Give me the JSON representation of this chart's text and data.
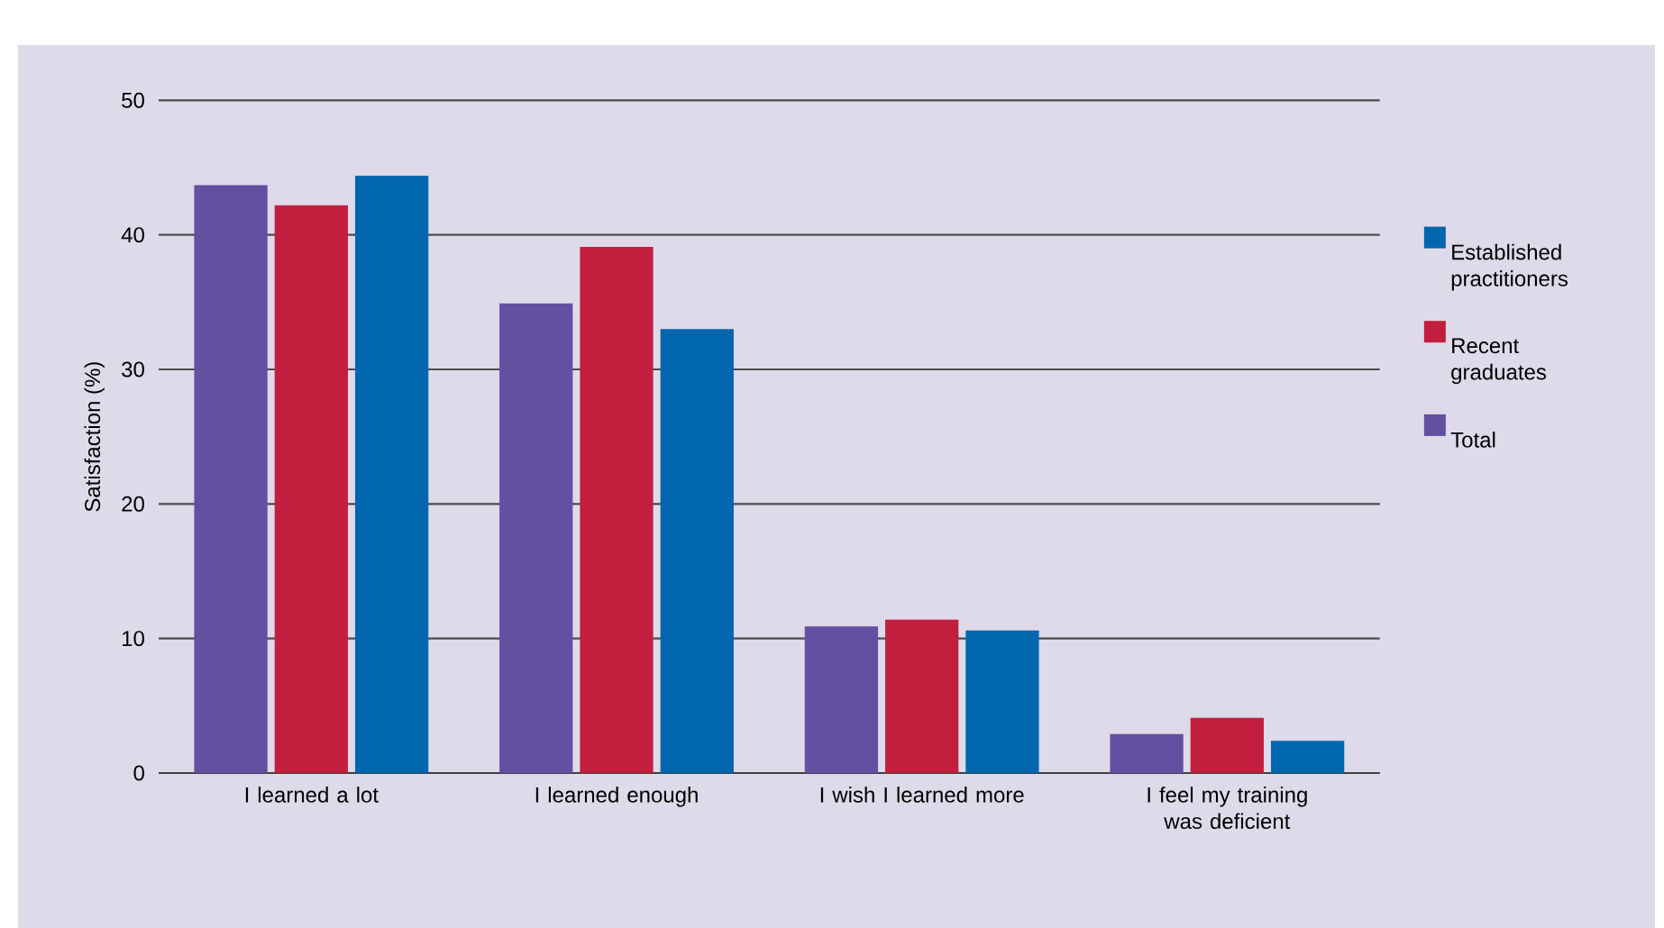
{
  "chart_data": {
    "type": "bar",
    "ylabel": "Satisfaction (%)",
    "categories": [
      "I learned a lot",
      "I learned enough",
      "I wish I learned more",
      "I feel my training was deficient"
    ],
    "series": [
      {
        "name": "Total",
        "color": "#6250a0",
        "values": [
          43.7,
          34.9,
          10.9,
          2.9
        ]
      },
      {
        "name": "Recent graduates",
        "color": "#c21f3e",
        "values": [
          42.2,
          39.1,
          11.4,
          4.1
        ]
      },
      {
        "name": "Established practitioners",
        "color": "#0066ae",
        "values": [
          44.4,
          33.0,
          10.6,
          2.4
        ]
      }
    ],
    "ylim": [
      0,
      50
    ],
    "yticks": [
      0,
      10,
      20,
      30,
      40,
      50
    ],
    "grid": "y",
    "legend": "right"
  }
}
